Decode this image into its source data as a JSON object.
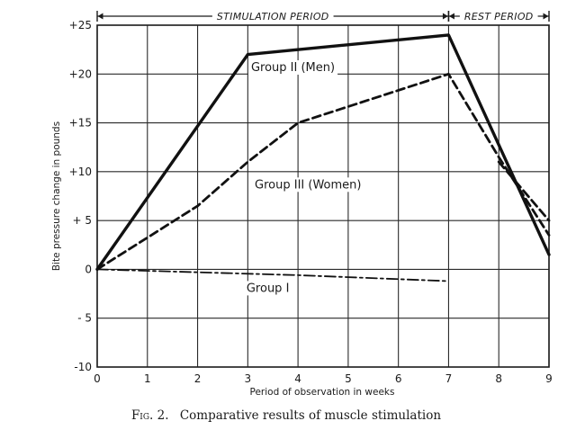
{
  "chart_data": {
    "type": "line",
    "caption": {
      "fig": "Fig. 2.",
      "text": "Comparative results of muscle stimulation"
    },
    "xlabel": "Period of observation in weeks",
    "ylabel": "Bite pressure change in pounds",
    "xlim": [
      0,
      9
    ],
    "ylim": [
      -10,
      25
    ],
    "x_ticks": [
      "0",
      "1",
      "2",
      "3",
      "4",
      "5",
      "6",
      "7",
      "8",
      "9"
    ],
    "y_ticks": [
      "+25",
      "+20",
      "+15",
      "+10",
      "+ 5",
      "0",
      "- 5",
      "-10"
    ],
    "y_tick_values": [
      25,
      20,
      15,
      10,
      5,
      0,
      -5,
      -10
    ],
    "grid": true,
    "periods": [
      {
        "label": "STIMULATION PERIOD",
        "start": 0,
        "end": 7
      },
      {
        "label": "REST PERIOD",
        "start": 7,
        "end": 9
      }
    ],
    "series": [
      {
        "name": "Group II (Men)",
        "style": "solid",
        "label_at": [
          3.9,
          20.3
        ],
        "points": [
          [
            0,
            0
          ],
          [
            3,
            22
          ],
          [
            7,
            24
          ],
          [
            9,
            1.5
          ]
        ]
      },
      {
        "name": "Group III (Women)",
        "style": "dashed",
        "label_at": [
          4.2,
          8.3
        ],
        "points": [
          [
            0,
            0
          ],
          [
            2,
            6.5
          ],
          [
            3,
            11
          ],
          [
            4,
            15
          ],
          [
            7,
            20
          ],
          [
            8,
            11.5
          ],
          [
            9,
            3.5
          ]
        ]
      },
      {
        "name": "Group I",
        "style": "dashdot",
        "label_at": [
          3.4,
          -2.3
        ],
        "points": [
          [
            0,
            0
          ],
          [
            4,
            -0.6
          ],
          [
            7,
            -1.2
          ]
        ]
      }
    ],
    "extra_line": {
      "points": [
        [
          8,
          11
        ],
        [
          9,
          5
        ]
      ],
      "style": "dashed"
    }
  }
}
